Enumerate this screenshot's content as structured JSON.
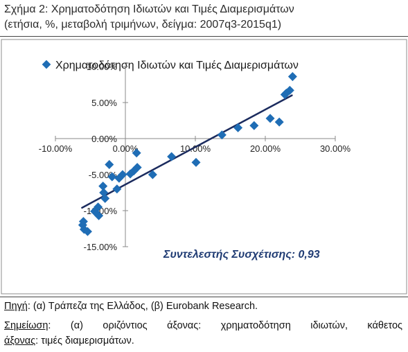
{
  "figure": {
    "title_line1": "Σχήμα 2: Χρηματοδότηση Ιδιωτών και Τιμές Διαμερισμάτων",
    "title_line2": "(ετήσια, %, μεταβολή τριμήνων, δείγμα: 2007q3-2015q1)"
  },
  "chart_data": {
    "type": "scatter",
    "legend_label": "Χρηματοδότηση Ιδιωτών και Τιμές Διαμερισμάτων",
    "legend_position": "top",
    "xlim": [
      -10,
      30
    ],
    "ylim": [
      -15,
      10
    ],
    "x_ticks": [
      -10,
      0,
      10,
      20,
      30
    ],
    "x_tick_labels": [
      "-10.00%",
      "0.00%",
      "10.00%",
      "20.00%",
      "30.00%"
    ],
    "y_ticks": [
      10,
      5,
      0,
      -5,
      -10,
      -15
    ],
    "y_tick_labels": [
      "10.00%",
      "5.00%",
      "0.00%",
      "-5.00%",
      "-10.00%",
      "-15.00%"
    ],
    "grid": false,
    "points": [
      {
        "x": 23.9,
        "y": 8.6
      },
      {
        "x": 23.5,
        "y": 6.7
      },
      {
        "x": 23.0,
        "y": 6.3
      },
      {
        "x": 22.8,
        "y": 6.1
      },
      {
        "x": 20.7,
        "y": 2.8
      },
      {
        "x": 22.0,
        "y": 2.3
      },
      {
        "x": 18.4,
        "y": 1.8
      },
      {
        "x": 16.1,
        "y": 1.5
      },
      {
        "x": 13.8,
        "y": 0.5
      },
      {
        "x": 10.1,
        "y": -3.3
      },
      {
        "x": 6.6,
        "y": -2.5
      },
      {
        "x": 1.6,
        "y": -2.0
      },
      {
        "x": 1.7,
        "y": -4.0
      },
      {
        "x": 1.2,
        "y": -4.5
      },
      {
        "x": 0.7,
        "y": -4.9
      },
      {
        "x": -0.4,
        "y": -5.0
      },
      {
        "x": 3.9,
        "y": -5.0
      },
      {
        "x": -2.3,
        "y": -3.6
      },
      {
        "x": -1.9,
        "y": -5.3
      },
      {
        "x": -0.9,
        "y": -5.5
      },
      {
        "x": -3.2,
        "y": -6.6
      },
      {
        "x": -3.1,
        "y": -7.5
      },
      {
        "x": -1.2,
        "y": -7.0
      },
      {
        "x": -2.9,
        "y": -8.3
      },
      {
        "x": -3.9,
        "y": -9.5
      },
      {
        "x": -4.4,
        "y": -10.1
      },
      {
        "x": -3.8,
        "y": -10.7
      },
      {
        "x": -6.0,
        "y": -11.5
      },
      {
        "x": -6.1,
        "y": -12.0
      },
      {
        "x": -5.9,
        "y": -12.6
      },
      {
        "x": -5.4,
        "y": -12.9
      }
    ],
    "trendline": {
      "x": [
        -6.2,
        23.8
      ],
      "y": [
        -9.6,
        6.0
      ]
    },
    "annotation": "Συντελεστής Συσχέτισης: 0,93",
    "colors": {
      "marker": "#1f6db5",
      "trendline": "#1b2b5e",
      "annotation": "#1f3b73",
      "axis": "#8a8a8a",
      "frame": "#8c8c8c"
    }
  },
  "footer": {
    "source_label": "Πηγή",
    "source_text": ": (α) Τράπεζα της Ελλάδος, (β) Eurobank Research.",
    "note_label": "Σημείωση",
    "note_text": ": (α) οριζόντιος άξονας: χρηματοδότηση ιδιωτών, κάθετος",
    "note_label2": "άξονας",
    "note_text2": ": τιμές διαμερισμάτων."
  }
}
